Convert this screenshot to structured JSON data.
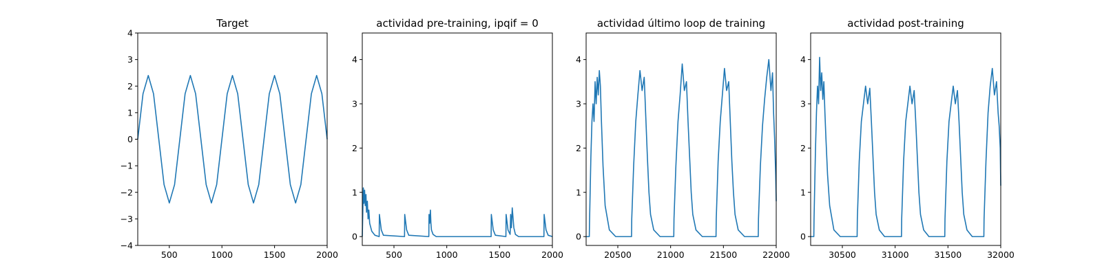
{
  "chart_data": [
    {
      "type": "line",
      "title": "Target",
      "xlim": [
        200,
        2000
      ],
      "ylim": [
        -4,
        4
      ],
      "xticks": [
        500,
        1000,
        1500,
        2000
      ],
      "xtick_labels": [
        "500",
        "1000",
        "1500",
        "2000"
      ],
      "yticks": [
        -4,
        -3,
        -2,
        -1,
        0,
        1,
        2,
        3,
        4
      ],
      "ytick_labels": [
        "−4",
        "−3",
        "−2",
        "−1",
        "0",
        "1",
        "2",
        "3",
        "4"
      ],
      "series": [
        {
          "color": "#1f77b4",
          "x": [
            200,
            250,
            300,
            350,
            400,
            450,
            500,
            550,
            600,
            650,
            700,
            750,
            800,
            850,
            900,
            950,
            1000,
            1050,
            1100,
            1150,
            1200,
            1250,
            1300,
            1350,
            1400,
            1450,
            1500,
            1550,
            1600,
            1650,
            1700,
            1750,
            1800,
            1850,
            1900,
            1950,
            2000
          ],
          "y": [
            0,
            1.71,
            2.4,
            1.71,
            0,
            -1.71,
            -2.4,
            -1.71,
            0,
            1.71,
            2.4,
            1.71,
            0,
            -1.71,
            -2.4,
            -1.71,
            0,
            1.71,
            2.4,
            1.71,
            0,
            -1.71,
            -2.4,
            -1.71,
            0,
            1.71,
            2.4,
            1.71,
            0,
            -1.71,
            -2.4,
            -1.71,
            0,
            1.71,
            2.4,
            1.71,
            0
          ]
        }
      ]
    },
    {
      "type": "line",
      "title": "actividad pre-training, ipqif = 0",
      "xlim": [
        200,
        2000
      ],
      "ylim": [
        -0.2,
        4.6
      ],
      "xticks": [
        500,
        1000,
        1500,
        2000
      ],
      "xtick_labels": [
        "500",
        "1000",
        "1500",
        "2000"
      ],
      "yticks": [
        0,
        1,
        2,
        3,
        4
      ],
      "ytick_labels": [
        "0",
        "1",
        "2",
        "3",
        "4"
      ],
      "series": [
        {
          "color": "#1f77b4",
          "x": [
            200,
            210,
            215,
            222,
            228,
            235,
            240,
            248,
            255,
            262,
            270,
            290,
            320,
            360,
            362,
            380,
            400,
            600,
            602,
            620,
            640,
            830,
            832,
            838,
            845,
            850,
            855,
            870,
            900,
            1420,
            1422,
            1440,
            1460,
            1560,
            1562,
            1580,
            1600,
            1605,
            1612,
            1620,
            1635,
            1650,
            1680,
            1920,
            1922,
            1940,
            1960,
            2000
          ],
          "y": [
            0,
            1.1,
            0.75,
            1.05,
            0.7,
            0.95,
            0.55,
            0.8,
            0.4,
            0.6,
            0.3,
            0.12,
            0.03,
            0,
            0.5,
            0.15,
            0.03,
            0,
            0.5,
            0.15,
            0.03,
            0,
            0.5,
            0.3,
            0.6,
            0.3,
            0.15,
            0.05,
            0,
            0,
            0.5,
            0.15,
            0.03,
            0,
            0.5,
            0.15,
            0.05,
            0.5,
            0.2,
            0.65,
            0.2,
            0.05,
            0,
            0,
            0.5,
            0.15,
            0.03,
            0
          ]
        }
      ]
    },
    {
      "type": "line",
      "title": "actividad último loop de training",
      "xlim": [
        20200,
        22000
      ],
      "ylim": [
        -0.2,
        4.6
      ],
      "xticks": [
        20500,
        21000,
        21500,
        22000
      ],
      "xtick_labels": [
        "20500",
        "21000",
        "21500",
        "22000"
      ],
      "yticks": [
        0,
        1,
        2,
        3,
        4
      ],
      "ytick_labels": [
        "0",
        "1",
        "2",
        "3",
        "4"
      ],
      "series": [
        {
          "color": "#1f77b4",
          "x": [
            20200,
            20230,
            20232,
            20245,
            20255,
            20265,
            20275,
            20285,
            20295,
            20305,
            20315,
            20325,
            20335,
            20345,
            20360,
            20380,
            20420,
            20480,
            20630,
            20632,
            20650,
            20670,
            20690,
            20710,
            20730,
            20750,
            20765,
            20780,
            20795,
            20810,
            20840,
            20900,
            21030,
            21032,
            21050,
            21070,
            21090,
            21110,
            21130,
            21150,
            21165,
            21180,
            21195,
            21210,
            21240,
            21300,
            21430,
            21432,
            21450,
            21470,
            21490,
            21510,
            21530,
            21550,
            21565,
            21580,
            21595,
            21610,
            21640,
            21700,
            21830,
            21832,
            21850,
            21870,
            21890,
            21910,
            21930,
            21950,
            21965,
            21975,
            21985,
            21995,
            22000
          ],
          "y": [
            0,
            0,
            0.3,
            1.8,
            2.6,
            3.0,
            2.6,
            3.5,
            3.0,
            3.6,
            3.2,
            3.75,
            3.4,
            2.6,
            1.6,
            0.7,
            0.15,
            0,
            0,
            0.4,
            1.6,
            2.6,
            3.2,
            3.75,
            3.3,
            3.6,
            2.7,
            1.8,
            1.0,
            0.5,
            0.15,
            0,
            0,
            0.4,
            1.6,
            2.6,
            3.2,
            3.9,
            3.3,
            3.5,
            2.6,
            1.8,
            1.0,
            0.5,
            0.15,
            0,
            0,
            0.4,
            1.7,
            2.6,
            3.2,
            3.8,
            3.3,
            3.5,
            2.6,
            1.7,
            1.0,
            0.5,
            0.15,
            0,
            0,
            0.4,
            1.6,
            2.5,
            3.1,
            3.6,
            4.0,
            3.3,
            3.7,
            2.8,
            2.2,
            1.4,
            0.8
          ]
        }
      ]
    },
    {
      "type": "line",
      "title": "actividad post-training",
      "xlim": [
        30200,
        32000
      ],
      "ylim": [
        -0.2,
        4.6
      ],
      "xticks": [
        30500,
        31000,
        31500,
        32000
      ],
      "xtick_labels": [
        "30500",
        "31000",
        "31500",
        "32000"
      ],
      "yticks": [
        0,
        1,
        2,
        3,
        4
      ],
      "ytick_labels": [
        "0",
        "1",
        "2",
        "3",
        "4"
      ],
      "series": [
        {
          "color": "#1f77b4",
          "x": [
            30200,
            30230,
            30232,
            30245,
            30255,
            30265,
            30275,
            30285,
            30295,
            30305,
            30315,
            30325,
            30335,
            30345,
            30360,
            30380,
            30420,
            30480,
            30640,
            30642,
            30660,
            30680,
            30700,
            30720,
            30740,
            30760,
            30775,
            30790,
            30805,
            30820,
            30850,
            30900,
            31060,
            31062,
            31080,
            31100,
            31120,
            31140,
            31160,
            31180,
            31195,
            31210,
            31225,
            31240,
            31270,
            31320,
            31470,
            31472,
            31490,
            31510,
            31530,
            31550,
            31570,
            31590,
            31605,
            31620,
            31635,
            31650,
            31680,
            31730,
            31840,
            31842,
            31860,
            31880,
            31900,
            31920,
            31940,
            31960,
            31975,
            31985,
            31995,
            32000
          ],
          "y": [
            0,
            0,
            0.4,
            1.9,
            2.8,
            3.4,
            3.0,
            4.05,
            3.3,
            3.7,
            3.1,
            3.5,
            2.8,
            2.2,
            1.4,
            0.7,
            0.15,
            0,
            0,
            0.4,
            1.7,
            2.6,
            3.0,
            3.4,
            3.0,
            3.35,
            2.6,
            1.8,
            1.0,
            0.5,
            0.15,
            0,
            0,
            0.4,
            1.7,
            2.6,
            3.0,
            3.4,
            3.0,
            3.3,
            2.6,
            1.8,
            1.0,
            0.5,
            0.15,
            0,
            0,
            0.4,
            1.7,
            2.6,
            3.0,
            3.4,
            3.0,
            3.3,
            2.6,
            1.8,
            1.0,
            0.5,
            0.15,
            0,
            0,
            0.4,
            1.7,
            2.8,
            3.4,
            3.8,
            3.2,
            3.5,
            2.8,
            2.5,
            2.0,
            1.15
          ]
        }
      ]
    }
  ]
}
